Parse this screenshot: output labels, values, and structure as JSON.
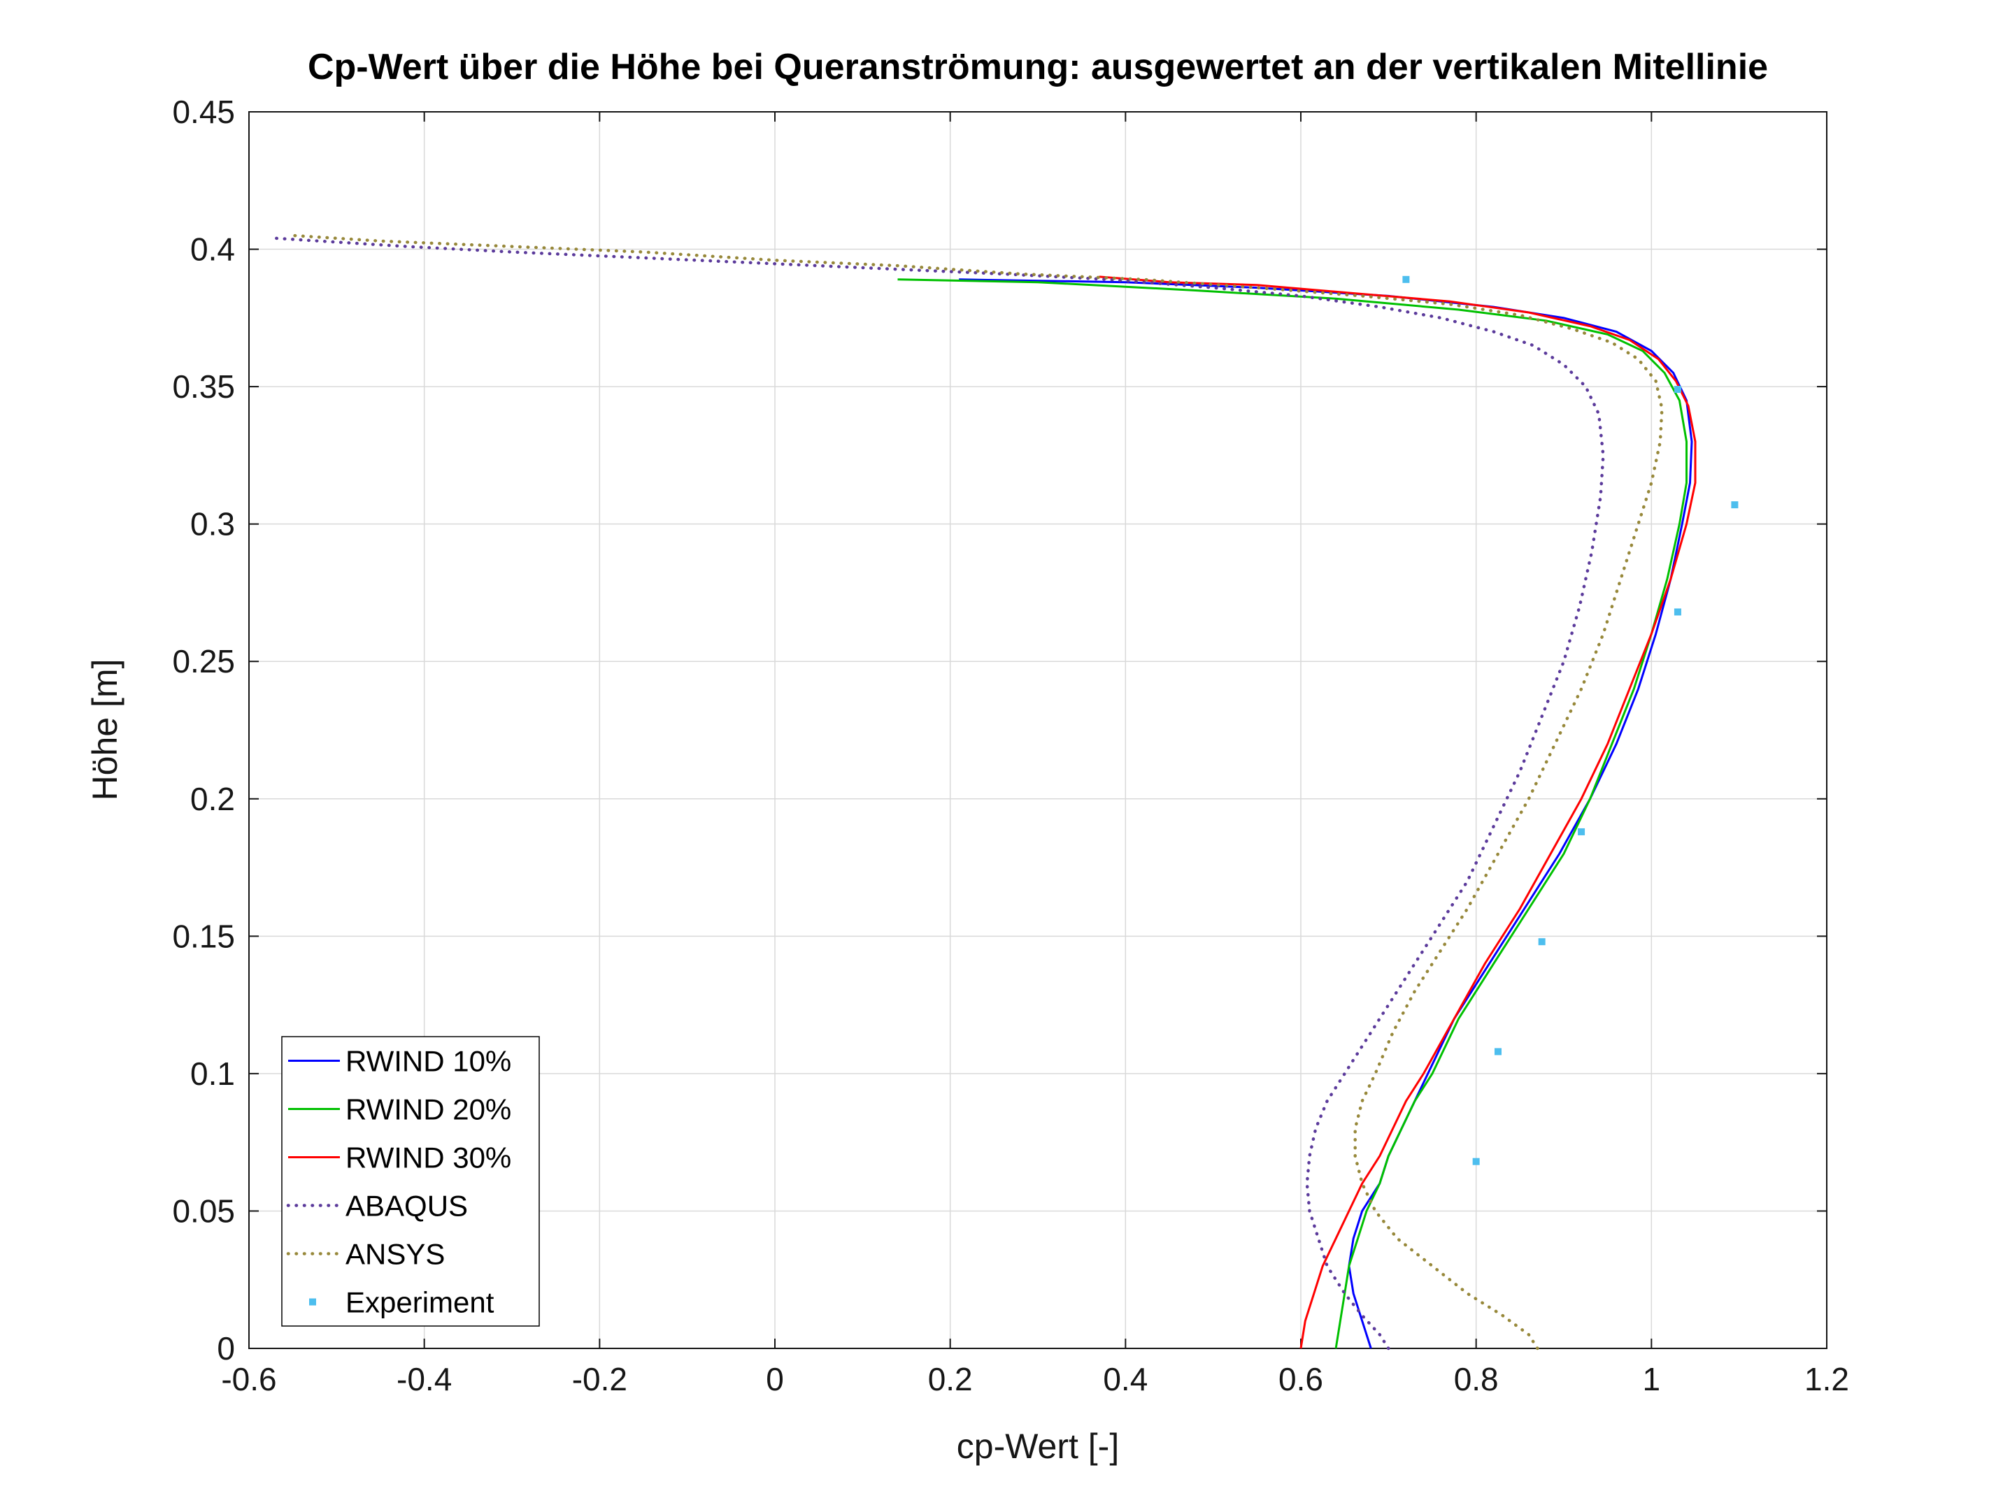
{
  "chart_data": {
    "type": "line",
    "title": "Cp-Wert über die Höhe bei Queranströmung: ausgewertet an der vertikalen Mitellinie",
    "xlabel": "cp-Wert [-]",
    "ylabel": "Höhe [m]",
    "xlim": [
      -0.6,
      1.2
    ],
    "ylim": [
      0,
      0.45
    ],
    "xticks": [
      -0.6,
      -0.4,
      -0.2,
      0,
      0.2,
      0.4,
      0.6,
      0.8,
      1,
      1.2
    ],
    "xtick_labels": [
      "-0.6",
      "-0.4",
      "-0.2",
      "0",
      "0.2",
      "0.4",
      "0.6",
      "0.8",
      "1",
      "1.2"
    ],
    "yticks": [
      0,
      0.05,
      0.1,
      0.15,
      0.2,
      0.25,
      0.3,
      0.35,
      0.4,
      0.45
    ],
    "ytick_labels": [
      "0",
      "0.05",
      "0.1",
      "0.15",
      "0.2",
      "0.25",
      "0.3",
      "0.35",
      "0.4",
      "0.45"
    ],
    "grid": true,
    "grid_color": "#d9d9d9",
    "axis_color": "#151515",
    "legend_position": "lower-left",
    "series": [
      {
        "name": "RWIND 10%",
        "style": "solid",
        "color": "#0000ff",
        "points": [
          [
            0.68,
            0
          ],
          [
            0.67,
            0.01
          ],
          [
            0.66,
            0.02
          ],
          [
            0.655,
            0.03
          ],
          [
            0.66,
            0.04
          ],
          [
            0.67,
            0.05
          ],
          [
            0.69,
            0.06
          ],
          [
            0.7,
            0.07
          ],
          [
            0.715,
            0.08
          ],
          [
            0.73,
            0.09
          ],
          [
            0.745,
            0.1
          ],
          [
            0.775,
            0.12
          ],
          [
            0.815,
            0.14
          ],
          [
            0.855,
            0.16
          ],
          [
            0.895,
            0.18
          ],
          [
            0.93,
            0.2
          ],
          [
            0.96,
            0.22
          ],
          [
            0.985,
            0.24
          ],
          [
            1.005,
            0.26
          ],
          [
            1.022,
            0.28
          ],
          [
            1.035,
            0.3
          ],
          [
            1.044,
            0.315
          ],
          [
            1.046,
            0.33
          ],
          [
            1.04,
            0.345
          ],
          [
            1.025,
            0.355
          ],
          [
            1.0,
            0.363
          ],
          [
            0.96,
            0.37
          ],
          [
            0.9,
            0.375
          ],
          [
            0.82,
            0.379
          ],
          [
            0.7,
            0.383
          ],
          [
            0.55,
            0.386
          ],
          [
            0.4,
            0.388
          ],
          [
            0.21,
            0.389
          ]
        ]
      },
      {
        "name": "RWIND 20%",
        "style": "solid",
        "color": "#00c000",
        "points": [
          [
            0.64,
            0
          ],
          [
            0.645,
            0.01
          ],
          [
            0.65,
            0.02
          ],
          [
            0.655,
            0.03
          ],
          [
            0.665,
            0.04
          ],
          [
            0.675,
            0.05
          ],
          [
            0.69,
            0.06
          ],
          [
            0.7,
            0.07
          ],
          [
            0.715,
            0.08
          ],
          [
            0.73,
            0.09
          ],
          [
            0.75,
            0.1
          ],
          [
            0.78,
            0.12
          ],
          [
            0.82,
            0.14
          ],
          [
            0.86,
            0.16
          ],
          [
            0.9,
            0.18
          ],
          [
            0.93,
            0.2
          ],
          [
            0.955,
            0.22
          ],
          [
            0.98,
            0.24
          ],
          [
            1.0,
            0.26
          ],
          [
            1.018,
            0.28
          ],
          [
            1.032,
            0.3
          ],
          [
            1.04,
            0.315
          ],
          [
            1.04,
            0.33
          ],
          [
            1.032,
            0.345
          ],
          [
            1.015,
            0.355
          ],
          [
            0.99,
            0.363
          ],
          [
            0.95,
            0.369
          ],
          [
            0.88,
            0.374
          ],
          [
            0.78,
            0.378
          ],
          [
            0.64,
            0.382
          ],
          [
            0.48,
            0.385
          ],
          [
            0.3,
            0.388
          ],
          [
            0.14,
            0.389
          ]
        ]
      },
      {
        "name": "RWIND 30%",
        "style": "solid",
        "color": "#ff0000",
        "points": [
          [
            0.6,
            0
          ],
          [
            0.605,
            0.01
          ],
          [
            0.615,
            0.02
          ],
          [
            0.625,
            0.03
          ],
          [
            0.64,
            0.04
          ],
          [
            0.655,
            0.05
          ],
          [
            0.67,
            0.06
          ],
          [
            0.69,
            0.07
          ],
          [
            0.705,
            0.08
          ],
          [
            0.72,
            0.09
          ],
          [
            0.74,
            0.1
          ],
          [
            0.775,
            0.12
          ],
          [
            0.81,
            0.14
          ],
          [
            0.85,
            0.16
          ],
          [
            0.885,
            0.18
          ],
          [
            0.92,
            0.2
          ],
          [
            0.95,
            0.22
          ],
          [
            0.975,
            0.24
          ],
          [
            1.0,
            0.26
          ],
          [
            1.022,
            0.28
          ],
          [
            1.04,
            0.3
          ],
          [
            1.05,
            0.315
          ],
          [
            1.05,
            0.33
          ],
          [
            1.042,
            0.343
          ],
          [
            1.028,
            0.352
          ],
          [
            1.008,
            0.36
          ],
          [
            0.975,
            0.367
          ],
          [
            0.93,
            0.372
          ],
          [
            0.86,
            0.377
          ],
          [
            0.77,
            0.381
          ],
          [
            0.66,
            0.384
          ],
          [
            0.55,
            0.387
          ],
          [
            0.45,
            0.388
          ],
          [
            0.37,
            0.39
          ]
        ]
      },
      {
        "name": "ABAQUS",
        "style": "dotted",
        "color": "#5b3a9b",
        "points": [
          [
            0.7,
            0
          ],
          [
            0.69,
            0.005
          ],
          [
            0.67,
            0.012
          ],
          [
            0.65,
            0.02
          ],
          [
            0.63,
            0.03
          ],
          [
            0.62,
            0.04
          ],
          [
            0.61,
            0.05
          ],
          [
            0.607,
            0.06
          ],
          [
            0.61,
            0.07
          ],
          [
            0.617,
            0.08
          ],
          [
            0.63,
            0.09
          ],
          [
            0.65,
            0.1
          ],
          [
            0.67,
            0.11
          ],
          [
            0.7,
            0.125
          ],
          [
            0.73,
            0.14
          ],
          [
            0.76,
            0.155
          ],
          [
            0.79,
            0.17
          ],
          [
            0.82,
            0.19
          ],
          [
            0.85,
            0.21
          ],
          [
            0.875,
            0.23
          ],
          [
            0.9,
            0.25
          ],
          [
            0.918,
            0.27
          ],
          [
            0.932,
            0.29
          ],
          [
            0.942,
            0.31
          ],
          [
            0.945,
            0.325
          ],
          [
            0.94,
            0.34
          ],
          [
            0.925,
            0.35
          ],
          [
            0.9,
            0.358
          ],
          [
            0.865,
            0.365
          ],
          [
            0.82,
            0.37
          ],
          [
            0.76,
            0.375
          ],
          [
            0.69,
            0.379
          ],
          [
            0.6,
            0.383
          ],
          [
            0.5,
            0.386
          ],
          [
            0.38,
            0.389
          ],
          [
            0.26,
            0.391
          ],
          [
            0.12,
            0.393
          ],
          [
            -0.02,
            0.395
          ],
          [
            -0.16,
            0.397
          ],
          [
            -0.3,
            0.399
          ],
          [
            -0.42,
            0.401
          ],
          [
            -0.52,
            0.403
          ],
          [
            -0.57,
            0.404
          ]
        ]
      },
      {
        "name": "ANSYS",
        "style": "dotted",
        "color": "#97883a",
        "points": [
          [
            0.87,
            0
          ],
          [
            0.86,
            0.005
          ],
          [
            0.83,
            0.012
          ],
          [
            0.79,
            0.02
          ],
          [
            0.75,
            0.03
          ],
          [
            0.71,
            0.04
          ],
          [
            0.685,
            0.05
          ],
          [
            0.67,
            0.06
          ],
          [
            0.662,
            0.07
          ],
          [
            0.662,
            0.08
          ],
          [
            0.67,
            0.09
          ],
          [
            0.685,
            0.1
          ],
          [
            0.705,
            0.115
          ],
          [
            0.73,
            0.13
          ],
          [
            0.76,
            0.145
          ],
          [
            0.79,
            0.16
          ],
          [
            0.825,
            0.18
          ],
          [
            0.86,
            0.2
          ],
          [
            0.89,
            0.22
          ],
          [
            0.92,
            0.24
          ],
          [
            0.945,
            0.26
          ],
          [
            0.965,
            0.28
          ],
          [
            0.985,
            0.3
          ],
          [
            1.0,
            0.315
          ],
          [
            1.01,
            0.33
          ],
          [
            1.012,
            0.342
          ],
          [
            1.005,
            0.352
          ],
          [
            0.985,
            0.36
          ],
          [
            0.955,
            0.366
          ],
          [
            0.91,
            0.371
          ],
          [
            0.85,
            0.376
          ],
          [
            0.77,
            0.38
          ],
          [
            0.67,
            0.383
          ],
          [
            0.55,
            0.386
          ],
          [
            0.42,
            0.389
          ],
          [
            0.28,
            0.391
          ],
          [
            0.14,
            0.394
          ],
          [
            0.0,
            0.396
          ],
          [
            -0.15,
            0.399
          ],
          [
            -0.3,
            0.401
          ],
          [
            -0.45,
            0.403
          ],
          [
            -0.55,
            0.405
          ]
        ]
      },
      {
        "name": "Experiment",
        "style": "marker",
        "color": "#4dbeee",
        "points": [
          [
            0.72,
            0.389
          ],
          [
            1.03,
            0.349
          ],
          [
            1.095,
            0.307
          ],
          [
            1.03,
            0.268
          ],
          [
            0.92,
            0.188
          ],
          [
            0.875,
            0.148
          ],
          [
            0.825,
            0.108
          ],
          [
            0.8,
            0.068
          ]
        ]
      }
    ]
  }
}
